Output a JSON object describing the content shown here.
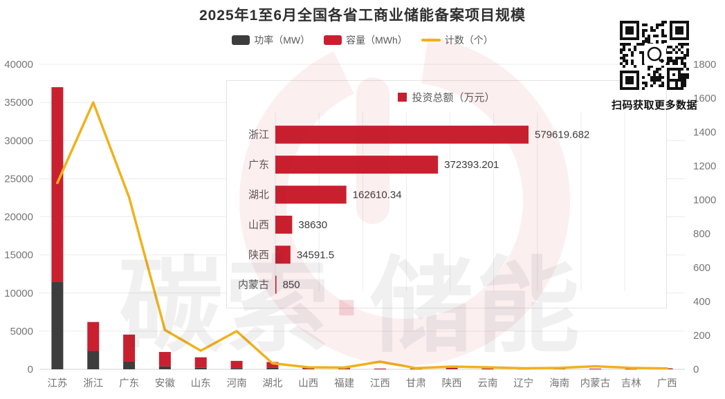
{
  "title": "2025年1至6月全国各省工商业储能备案项目规模",
  "qr": {
    "caption": "扫码获取更多数据"
  },
  "watermark": {
    "part1": "碳索",
    "dot": "·",
    "part2": "储能"
  },
  "colors": {
    "power_bar": "#3d3d3d",
    "capacity_bar": "#c9202f",
    "count_line": "#f0b11d",
    "axis_text": "#757575",
    "grid": "#ebebeb",
    "baseline": "#d0d0d0"
  },
  "chart_data": [
    {
      "type": "bar",
      "subtype": "stacked-bars-with-line",
      "title": "2025年1至6月全国各省工商业储能备案项目规模",
      "categories": [
        "江苏",
        "浙江",
        "广东",
        "安徽",
        "山东",
        "河南",
        "湖北",
        "山西",
        "福建",
        "江西",
        "甘肃",
        "陕西",
        "云南",
        "辽宁",
        "海南",
        "内蒙古",
        "吉林",
        "广西"
      ],
      "series": [
        {
          "name": "功率（MW）",
          "type": "bar",
          "stack": true,
          "color": "#3d3d3d",
          "values": [
            11500,
            2400,
            1000,
            390,
            200,
            160,
            210,
            40,
            30,
            20,
            15,
            50,
            20,
            15,
            30,
            20,
            10,
            45
          ]
        },
        {
          "name": "容量（MWh）",
          "type": "bar",
          "stack": true,
          "color": "#c9202f",
          "values": [
            25500,
            3800,
            3550,
            1880,
            1370,
            940,
            740,
            150,
            140,
            80,
            70,
            200,
            100,
            60,
            130,
            70,
            40,
            75
          ]
        },
        {
          "name": "计数（个）",
          "type": "line",
          "axis": "right",
          "color": "#f0b11d",
          "values": [
            1100,
            1575,
            1015,
            232,
            110,
            225,
            35,
            12,
            10,
            45,
            7,
            16,
            12,
            6,
            8,
            18,
            8,
            5
          ]
        }
      ],
      "left_axis": {
        "min": 0,
        "max": 40000,
        "step": 5000,
        "ticks": [
          "0",
          "5000",
          "10000",
          "15000",
          "20000",
          "25000",
          "30000",
          "35000",
          "40000"
        ]
      },
      "right_axis": {
        "min": 0,
        "max": 1800,
        "step": 200,
        "ticks": [
          "0",
          "200",
          "400",
          "600",
          "800",
          "1000",
          "1200",
          "1400",
          "1600",
          "1800"
        ]
      },
      "legend_position": "top",
      "grid": true
    },
    {
      "type": "bar",
      "orientation": "horizontal",
      "legend": "投资总额（万元）",
      "categories": [
        "浙江",
        "广东",
        "湖北",
        "山西",
        "陕西",
        "内蒙古"
      ],
      "values": [
        579619.682,
        372393.201,
        162610.34,
        38630,
        34591.5,
        850
      ],
      "value_labels": [
        "579619.682",
        "372393.201",
        "162610.34",
        "38630",
        "34591.5",
        "850"
      ],
      "xmax": 900000,
      "grid_step": 100000,
      "color": "#c9202f",
      "legend_position": "top",
      "grid": true
    }
  ]
}
